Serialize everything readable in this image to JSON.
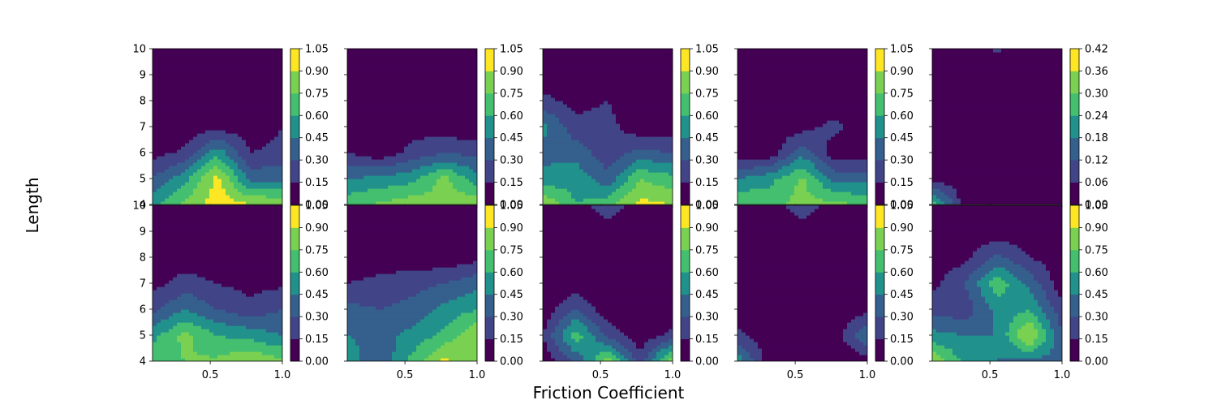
{
  "figure": {
    "xlabel": "Friction Coefficient",
    "ylabel": "Length"
  },
  "colors": {
    "viridis": [
      "#440154",
      "#482475",
      "#414487",
      "#355f8d",
      "#2a788e",
      "#21918c",
      "#22a884",
      "#44bf70",
      "#7ad151",
      "#bddf26",
      "#fde725"
    ],
    "axis": "#000000",
    "text": "#000000"
  },
  "chart_data": {
    "type": "heatmap",
    "subtype": "filled-contour grid",
    "rows": 2,
    "cols": 5,
    "x_grid": [
      0.1,
      0.325,
      0.55,
      0.775,
      1.0
    ],
    "y_grid": [
      4,
      5,
      6,
      7,
      8,
      9,
      10
    ],
    "xlim": [
      0.1,
      1.0
    ],
    "ylim": [
      4,
      10
    ],
    "x_ticks": [
      0.5,
      1.0
    ],
    "x_tick_labels": [
      "0.5",
      "1.0"
    ],
    "y_ticks": [
      4,
      5,
      6,
      7,
      8,
      9,
      10
    ],
    "y_tick_labels": [
      "4",
      "5",
      "6",
      "7",
      "8",
      "9",
      "10"
    ],
    "panels": [
      {
        "row": 0,
        "col": 0,
        "colorbar_ticks": [
          "0.00",
          "0.15",
          "0.30",
          "0.45",
          "0.60",
          "0.75",
          "0.90",
          "1.05"
        ],
        "vmax": 1.05,
        "z": [
          [
            0.55,
            0.8,
            0.98,
            0.92,
            0.9
          ],
          [
            0.3,
            0.55,
            0.95,
            0.4,
            0.4
          ],
          [
            0.1,
            0.18,
            0.55,
            0.15,
            0.2
          ],
          [
            0.05,
            0.05,
            0.1,
            0.05,
            0.15
          ],
          [
            0.05,
            0.05,
            0.05,
            0.05,
            0.07
          ],
          [
            0.05,
            0.05,
            0.05,
            0.05,
            0.05
          ],
          [
            0.05,
            0.05,
            0.05,
            0.05,
            0.05
          ]
        ]
      },
      {
        "row": 0,
        "col": 1,
        "colorbar_ticks": [
          "0.00",
          "0.15",
          "0.30",
          "0.45",
          "0.60",
          "0.75",
          "0.90",
          "1.05"
        ],
        "vmax": 1.05,
        "z": [
          [
            0.7,
            0.78,
            0.85,
            0.8,
            0.88
          ],
          [
            0.45,
            0.5,
            0.55,
            0.8,
            0.5
          ],
          [
            0.15,
            0.05,
            0.2,
            0.3,
            0.25
          ],
          [
            0.1,
            0.05,
            0.1,
            0.05,
            0.05
          ],
          [
            0.05,
            0.05,
            0.05,
            0.05,
            0.05
          ],
          [
            0.05,
            0.05,
            0.05,
            0.05,
            0.05
          ],
          [
            0.05,
            0.05,
            0.05,
            0.05,
            0.05
          ]
        ]
      },
      {
        "row": 0,
        "col": 2,
        "colorbar_ticks": [
          "0.00",
          "0.15",
          "0.30",
          "0.45",
          "0.60",
          "0.75",
          "0.90",
          "1.05"
        ],
        "vmax": 1.05,
        "z": [
          [
            0.9,
            0.6,
            0.7,
            0.95,
            0.9
          ],
          [
            0.5,
            0.55,
            0.35,
            0.75,
            0.65
          ],
          [
            0.4,
            0.4,
            0.2,
            0.35,
            0.3
          ],
          [
            0.5,
            0.2,
            0.2,
            0.05,
            0.05
          ],
          [
            0.2,
            0.1,
            0.15,
            0.05,
            0.05
          ],
          [
            0.05,
            0.05,
            0.05,
            0.05,
            0.05
          ],
          [
            0.05,
            0.05,
            0.05,
            0.05,
            0.05
          ]
        ]
      },
      {
        "row": 0,
        "col": 3,
        "colorbar_ticks": [
          "0.00",
          "0.15",
          "0.30",
          "0.45",
          "0.60",
          "0.75",
          "0.90",
          "1.05"
        ],
        "vmax": 1.05,
        "z": [
          [
            0.75,
            0.72,
            0.8,
            0.8,
            0.72
          ],
          [
            0.45,
            0.55,
            0.78,
            0.38,
            0.4
          ],
          [
            0.05,
            0.05,
            0.4,
            0.05,
            0.05
          ],
          [
            0.05,
            0.05,
            0.1,
            0.2,
            0.05
          ],
          [
            0.05,
            0.05,
            0.05,
            0.05,
            0.05
          ],
          [
            0.05,
            0.05,
            0.05,
            0.05,
            0.05
          ],
          [
            0.05,
            0.05,
            0.05,
            0.05,
            0.05
          ]
        ]
      },
      {
        "row": 0,
        "col": 4,
        "colorbar_ticks": [
          "0.00",
          "0.06",
          "0.12",
          "0.18",
          "0.24",
          "0.30",
          "0.36",
          "0.42"
        ],
        "vmax": 0.42,
        "z": [
          [
            0.3,
            0.02,
            0.02,
            0.02,
            0.02
          ],
          [
            0.03,
            0.02,
            0.02,
            0.02,
            0.02
          ],
          [
            0.02,
            0.02,
            0.02,
            0.02,
            0.02
          ],
          [
            0.02,
            0.02,
            0.02,
            0.02,
            0.02
          ],
          [
            0.02,
            0.02,
            0.02,
            0.02,
            0.02
          ],
          [
            0.02,
            0.02,
            0.02,
            0.02,
            0.02
          ],
          [
            0.02,
            0.02,
            0.07,
            0.02,
            0.02
          ]
        ]
      },
      {
        "row": 1,
        "col": 0,
        "colorbar_ticks": [
          "0.00",
          "0.15",
          "0.30",
          "0.45",
          "0.60",
          "0.75",
          "0.90",
          "1.05"
        ],
        "vmax": 1.05,
        "z": [
          [
            0.7,
            0.75,
            0.78,
            0.9,
            0.78
          ],
          [
            0.55,
            0.8,
            0.6,
            0.55,
            0.45
          ],
          [
            0.25,
            0.45,
            0.3,
            0.2,
            0.3
          ],
          [
            0.1,
            0.22,
            0.15,
            0.1,
            0.12
          ],
          [
            0.05,
            0.05,
            0.05,
            0.05,
            0.05
          ],
          [
            0.05,
            0.05,
            0.05,
            0.05,
            0.05
          ],
          [
            0.05,
            0.05,
            0.05,
            0.05,
            0.05
          ]
        ]
      },
      {
        "row": 1,
        "col": 1,
        "colorbar_ticks": [
          "0.00",
          "0.15",
          "0.30",
          "0.45",
          "0.60",
          "0.75",
          "0.90",
          "1.05"
        ],
        "vmax": 1.05,
        "z": [
          [
            0.55,
            0.3,
            0.65,
            0.95,
            0.75
          ],
          [
            0.45,
            0.4,
            0.5,
            0.65,
            0.9
          ],
          [
            0.35,
            0.3,
            0.35,
            0.5,
            0.6
          ],
          [
            0.15,
            0.2,
            0.25,
            0.3,
            0.4
          ],
          [
            0.05,
            0.05,
            0.05,
            0.05,
            0.1
          ],
          [
            0.05,
            0.05,
            0.05,
            0.05,
            0.05
          ],
          [
            0.05,
            0.05,
            0.05,
            0.05,
            0.05
          ]
        ]
      },
      {
        "row": 1,
        "col": 2,
        "colorbar_ticks": [
          "0.00",
          "0.15",
          "0.30",
          "0.45",
          "0.60",
          "0.75",
          "0.90",
          "1.05"
        ],
        "vmax": 1.05,
        "z": [
          [
            0.05,
            0.3,
            0.85,
            0.2,
            0.9
          ],
          [
            0.15,
            0.7,
            0.25,
            0.05,
            0.2
          ],
          [
            0.05,
            0.3,
            0.05,
            0.05,
            0.05
          ],
          [
            0.05,
            0.05,
            0.05,
            0.05,
            0.05
          ],
          [
            0.05,
            0.05,
            0.05,
            0.05,
            0.05
          ],
          [
            0.05,
            0.05,
            0.05,
            0.05,
            0.05
          ],
          [
            0.05,
            0.05,
            0.25,
            0.05,
            0.05
          ]
        ]
      },
      {
        "row": 1,
        "col": 3,
        "colorbar_ticks": [
          "0.00",
          "0.15",
          "0.30",
          "0.45",
          "0.60",
          "0.75",
          "0.90",
          "1.05"
        ],
        "vmax": 1.05,
        "z": [
          [
            0.55,
            0.05,
            0.05,
            0.05,
            0.05
          ],
          [
            0.2,
            0.05,
            0.05,
            0.05,
            0.45
          ],
          [
            0.05,
            0.05,
            0.05,
            0.05,
            0.1
          ],
          [
            0.05,
            0.05,
            0.05,
            0.05,
            0.05
          ],
          [
            0.05,
            0.05,
            0.05,
            0.05,
            0.05
          ],
          [
            0.05,
            0.05,
            0.05,
            0.05,
            0.05
          ],
          [
            0.05,
            0.05,
            0.25,
            0.05,
            0.05
          ]
        ]
      },
      {
        "row": 1,
        "col": 4,
        "colorbar_ticks": [
          "0.00",
          "0.15",
          "0.30",
          "0.45",
          "0.60",
          "0.75",
          "0.90",
          "1.05"
        ],
        "vmax": 1.05,
        "z": [
          [
            0.9,
            0.55,
            0.45,
            0.4,
            0.4
          ],
          [
            0.5,
            0.45,
            0.45,
            0.95,
            0.3
          ],
          [
            0.25,
            0.2,
            0.5,
            0.6,
            0.2
          ],
          [
            0.1,
            0.3,
            0.7,
            0.4,
            0.05
          ],
          [
            0.05,
            0.1,
            0.35,
            0.15,
            0.05
          ],
          [
            0.05,
            0.05,
            0.05,
            0.05,
            0.05
          ],
          [
            0.05,
            0.05,
            0.05,
            0.05,
            0.05
          ]
        ]
      }
    ]
  }
}
